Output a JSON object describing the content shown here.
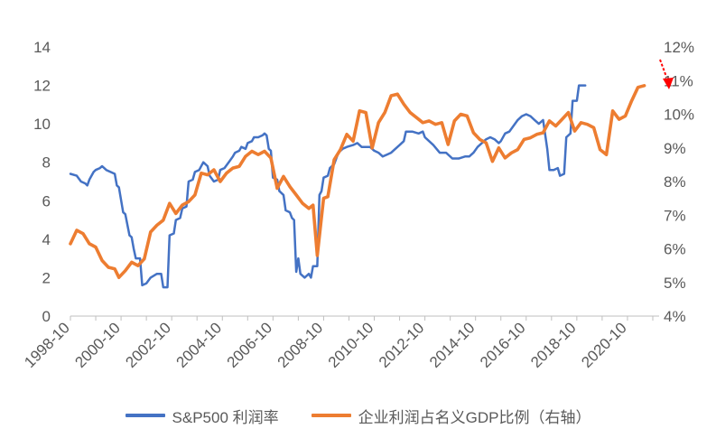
{
  "colors": {
    "sp500": "#4472C4",
    "gdp": "#ED7D31",
    "axis": "#BFBFBF",
    "arrow": "#FF0000"
  },
  "chart_data": {
    "type": "line",
    "title": "",
    "y_left": {
      "range": [
        0,
        14
      ],
      "ticks": [
        "0",
        "2",
        "4",
        "6",
        "8",
        "10",
        "12",
        "14"
      ],
      "tick_values": [
        0,
        2,
        4,
        6,
        8,
        10,
        12,
        14
      ]
    },
    "y_right": {
      "range": [
        4,
        12
      ],
      "ticks": [
        "4%",
        "5%",
        "6%",
        "7%",
        "8%",
        "9%",
        "10%",
        "11%",
        "12%"
      ],
      "tick_values": [
        4,
        5,
        6,
        7,
        8,
        9,
        10,
        11,
        12
      ]
    },
    "x": {
      "range": [
        "1998-10",
        "2022-01"
      ],
      "tick_labels": [
        "1998-10",
        "2000-10",
        "2002-10",
        "2004-10",
        "2006-10",
        "2008-10",
        "2010-10",
        "2012-10",
        "2014-10",
        "2016-10",
        "2018-10",
        "2020-10"
      ]
    },
    "grid": false,
    "legend_position": "bottom",
    "annotation": "red-down-arrow",
    "series": [
      {
        "name": "S&P500 利润率",
        "axis": "left",
        "points": [
          [
            "1998-10",
            7.4
          ],
          [
            "1999-01",
            7.3
          ],
          [
            "1999-03",
            7.0
          ],
          [
            "1999-05",
            6.9
          ],
          [
            "1999-06",
            6.8
          ],
          [
            "1999-07",
            7.1
          ],
          [
            "1999-09",
            7.5
          ],
          [
            "1999-10",
            7.6
          ],
          [
            "1999-12",
            7.7
          ],
          [
            "2000-01",
            7.8
          ],
          [
            "2000-03",
            7.6
          ],
          [
            "2000-05",
            7.5
          ],
          [
            "2000-07",
            7.4
          ],
          [
            "2000-08",
            6.8
          ],
          [
            "2000-09",
            6.7
          ],
          [
            "2000-11",
            5.4
          ],
          [
            "2000-12",
            5.3
          ],
          [
            "2001-02",
            4.2
          ],
          [
            "2001-03",
            4.1
          ],
          [
            "2001-04",
            3.5
          ],
          [
            "2001-05",
            3.0
          ],
          [
            "2001-07",
            3.0
          ],
          [
            "2001-08",
            1.6
          ],
          [
            "2001-10",
            1.7
          ],
          [
            "2001-12",
            2.0
          ],
          [
            "2002-03",
            2.2
          ],
          [
            "2002-05",
            2.2
          ],
          [
            "2002-06",
            1.5
          ],
          [
            "2002-08",
            1.5
          ],
          [
            "2002-09",
            4.2
          ],
          [
            "2002-11",
            4.3
          ],
          [
            "2002-12",
            5.0
          ],
          [
            "2003-02",
            5.1
          ],
          [
            "2003-03",
            5.6
          ],
          [
            "2003-05",
            5.7
          ],
          [
            "2003-06",
            7.0
          ],
          [
            "2003-08",
            7.1
          ],
          [
            "2003-09",
            7.5
          ],
          [
            "2003-11",
            7.6
          ],
          [
            "2004-01",
            8.0
          ],
          [
            "2004-03",
            7.8
          ],
          [
            "2004-04",
            7.3
          ],
          [
            "2004-06",
            7.0
          ],
          [
            "2004-08",
            7.1
          ],
          [
            "2004-09",
            7.6
          ],
          [
            "2004-11",
            7.7
          ],
          [
            "2005-01",
            8.0
          ],
          [
            "2005-03",
            8.3
          ],
          [
            "2005-04",
            8.5
          ],
          [
            "2005-06",
            8.6
          ],
          [
            "2005-07",
            8.8
          ],
          [
            "2005-09",
            8.7
          ],
          [
            "2005-10",
            9.0
          ],
          [
            "2005-12",
            9.1
          ],
          [
            "2006-01",
            9.3
          ],
          [
            "2006-03",
            9.3
          ],
          [
            "2006-05",
            9.4
          ],
          [
            "2006-06",
            9.5
          ],
          [
            "2006-07",
            9.4
          ],
          [
            "2006-08",
            8.7
          ],
          [
            "2006-09",
            8.6
          ],
          [
            "2006-10",
            7.2
          ],
          [
            "2006-12",
            7.1
          ],
          [
            "2007-01",
            6.5
          ],
          [
            "2007-03",
            6.3
          ],
          [
            "2007-04",
            5.5
          ],
          [
            "2007-06",
            5.4
          ],
          [
            "2007-07",
            5.1
          ],
          [
            "2007-08",
            5.0
          ],
          [
            "2007-09",
            2.3
          ],
          [
            "2007-10",
            3.0
          ],
          [
            "2007-11",
            2.2
          ],
          [
            "2008-01",
            2.0
          ],
          [
            "2008-03",
            2.2
          ],
          [
            "2008-04",
            2.0
          ],
          [
            "2008-05",
            2.6
          ],
          [
            "2008-07",
            2.6
          ],
          [
            "2008-08",
            6.3
          ],
          [
            "2008-09",
            6.5
          ],
          [
            "2008-10",
            7.2
          ],
          [
            "2008-12",
            7.3
          ],
          [
            "2009-01",
            7.7
          ],
          [
            "2009-03",
            7.9
          ],
          [
            "2009-05",
            8.5
          ],
          [
            "2009-07",
            8.7
          ],
          [
            "2009-09",
            8.8
          ],
          [
            "2009-12",
            8.9
          ],
          [
            "2010-02",
            9.0
          ],
          [
            "2010-04",
            8.8
          ],
          [
            "2010-06",
            8.8
          ],
          [
            "2010-08",
            8.8
          ],
          [
            "2010-10",
            8.6
          ],
          [
            "2010-12",
            8.5
          ],
          [
            "2011-02",
            8.3
          ],
          [
            "2011-04",
            8.4
          ],
          [
            "2011-06",
            8.5
          ],
          [
            "2011-08",
            8.7
          ],
          [
            "2011-10",
            8.9
          ],
          [
            "2011-12",
            9.1
          ],
          [
            "2012-01",
            9.6
          ],
          [
            "2012-04",
            9.6
          ],
          [
            "2012-07",
            9.5
          ],
          [
            "2012-09",
            9.6
          ],
          [
            "2012-10",
            9.3
          ],
          [
            "2012-12",
            9.1
          ],
          [
            "2013-02",
            8.9
          ],
          [
            "2013-05",
            8.5
          ],
          [
            "2013-08",
            8.5
          ],
          [
            "2013-11",
            8.2
          ],
          [
            "2014-02",
            8.2
          ],
          [
            "2014-05",
            8.3
          ],
          [
            "2014-07",
            8.3
          ],
          [
            "2014-09",
            8.5
          ],
          [
            "2014-11",
            8.8
          ],
          [
            "2015-01",
            9.0
          ],
          [
            "2015-03",
            9.2
          ],
          [
            "2015-05",
            9.3
          ],
          [
            "2015-07",
            9.2
          ],
          [
            "2015-09",
            9.0
          ],
          [
            "2015-10",
            9.1
          ],
          [
            "2015-12",
            9.5
          ],
          [
            "2016-02",
            9.6
          ],
          [
            "2016-04",
            9.9
          ],
          [
            "2016-06",
            10.2
          ],
          [
            "2016-08",
            10.4
          ],
          [
            "2016-10",
            10.5
          ],
          [
            "2016-12",
            10.4
          ],
          [
            "2017-02",
            10.2
          ],
          [
            "2017-04",
            10.0
          ],
          [
            "2017-06",
            10.2
          ],
          [
            "2017-08",
            8.7
          ],
          [
            "2017-09",
            7.6
          ],
          [
            "2017-11",
            7.6
          ],
          [
            "2018-01",
            7.7
          ],
          [
            "2018-02",
            7.3
          ],
          [
            "2018-04",
            7.4
          ],
          [
            "2018-05",
            9.3
          ],
          [
            "2018-07",
            9.5
          ],
          [
            "2018-08",
            11.2
          ],
          [
            "2018-10",
            11.2
          ],
          [
            "2018-11",
            12.0
          ],
          [
            "2019-01",
            12.0
          ],
          [
            "2019-02",
            12.0
          ]
        ]
      },
      {
        "name": "企业利润占名义GDP比例（右轴）",
        "axis": "right",
        "points": [
          [
            "1998-10",
            6.15
          ],
          [
            "1999-01",
            6.55
          ],
          [
            "1999-04",
            6.45
          ],
          [
            "1999-07",
            6.15
          ],
          [
            "1999-10",
            6.05
          ],
          [
            "2000-01",
            5.65
          ],
          [
            "2000-04",
            5.45
          ],
          [
            "2000-07",
            5.4
          ],
          [
            "2000-09",
            5.15
          ],
          [
            "2000-12",
            5.35
          ],
          [
            "2001-03",
            5.6
          ],
          [
            "2001-06",
            5.5
          ],
          [
            "2001-09",
            5.7
          ],
          [
            "2001-12",
            6.5
          ],
          [
            "2002-03",
            6.7
          ],
          [
            "2002-06",
            6.85
          ],
          [
            "2002-09",
            7.35
          ],
          [
            "2002-12",
            7.05
          ],
          [
            "2003-03",
            7.3
          ],
          [
            "2003-06",
            7.4
          ],
          [
            "2003-09",
            7.6
          ],
          [
            "2003-12",
            8.25
          ],
          [
            "2004-03",
            8.2
          ],
          [
            "2004-06",
            8.35
          ],
          [
            "2004-09",
            8.0
          ],
          [
            "2004-12",
            8.25
          ],
          [
            "2005-03",
            8.4
          ],
          [
            "2005-06",
            8.45
          ],
          [
            "2005-09",
            8.75
          ],
          [
            "2005-12",
            8.9
          ],
          [
            "2006-03",
            8.8
          ],
          [
            "2006-06",
            8.9
          ],
          [
            "2006-09",
            8.7
          ],
          [
            "2006-12",
            7.8
          ],
          [
            "2007-03",
            8.15
          ],
          [
            "2007-06",
            7.85
          ],
          [
            "2007-09",
            7.6
          ],
          [
            "2007-12",
            7.35
          ],
          [
            "2008-03",
            7.2
          ],
          [
            "2008-05",
            7.3
          ],
          [
            "2008-07",
            5.8
          ],
          [
            "2008-10",
            7.5
          ],
          [
            "2008-12",
            7.55
          ],
          [
            "2009-03",
            8.65
          ],
          [
            "2009-06",
            8.95
          ],
          [
            "2009-09",
            9.4
          ],
          [
            "2009-12",
            9.2
          ],
          [
            "2010-03",
            10.1
          ],
          [
            "2010-06",
            10.05
          ],
          [
            "2010-09",
            9.0
          ],
          [
            "2010-12",
            9.75
          ],
          [
            "2011-03",
            10.05
          ],
          [
            "2011-06",
            10.55
          ],
          [
            "2011-09",
            10.6
          ],
          [
            "2011-12",
            10.3
          ],
          [
            "2012-03",
            10.05
          ],
          [
            "2012-06",
            9.9
          ],
          [
            "2012-09",
            9.75
          ],
          [
            "2012-12",
            9.8
          ],
          [
            "2013-03",
            9.7
          ],
          [
            "2013-06",
            9.75
          ],
          [
            "2013-09",
            9.1
          ],
          [
            "2013-12",
            9.8
          ],
          [
            "2014-03",
            10.0
          ],
          [
            "2014-06",
            9.95
          ],
          [
            "2014-09",
            9.45
          ],
          [
            "2014-12",
            9.25
          ],
          [
            "2015-03",
            9.15
          ],
          [
            "2015-06",
            8.6
          ],
          [
            "2015-09",
            9.0
          ],
          [
            "2015-12",
            8.7
          ],
          [
            "2016-03",
            8.85
          ],
          [
            "2016-06",
            8.95
          ],
          [
            "2016-09",
            9.25
          ],
          [
            "2016-12",
            9.3
          ],
          [
            "2017-03",
            9.4
          ],
          [
            "2017-06",
            9.45
          ],
          [
            "2017-09",
            9.8
          ],
          [
            "2017-12",
            9.65
          ],
          [
            "2018-03",
            9.85
          ],
          [
            "2018-06",
            10.05
          ],
          [
            "2018-09",
            9.5
          ],
          [
            "2018-12",
            9.75
          ],
          [
            "2019-03",
            9.7
          ],
          [
            "2019-06",
            9.6
          ],
          [
            "2019-09",
            8.95
          ],
          [
            "2019-12",
            8.8
          ],
          [
            "2020-03",
            10.1
          ],
          [
            "2020-06",
            9.85
          ],
          [
            "2020-09",
            9.95
          ],
          [
            "2020-12",
            10.4
          ],
          [
            "2021-03",
            10.8
          ],
          [
            "2021-06",
            10.85
          ]
        ]
      }
    ]
  }
}
